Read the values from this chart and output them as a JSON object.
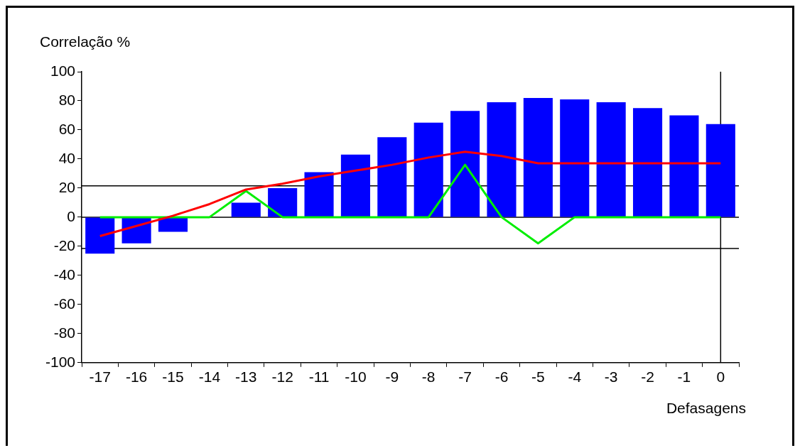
{
  "chart_data": {
    "type": "bar",
    "xlabel": "Defasagens",
    "ylabel": "Correlação %",
    "categories": [
      "-17",
      "-16",
      "-15",
      "-14",
      "-13",
      "-12",
      "-11",
      "-10",
      "-9",
      "-8",
      "-7",
      "-6",
      "-5",
      "-4",
      "-3",
      "-2",
      "-1",
      "0"
    ],
    "series": [
      {
        "color": "#0000ff",
        "values": [
          -25,
          -18,
          -10,
          0,
          10,
          20,
          31,
          43,
          55,
          65,
          73,
          79,
          82,
          81,
          79,
          75,
          70,
          64
        ]
      },
      {
        "type": "line",
        "color": "#ff0000",
        "values": [
          -13,
          -6,
          1,
          9,
          19,
          23,
          28,
          32,
          36,
          41,
          45,
          42,
          37,
          37,
          37,
          37,
          37,
          37
        ]
      },
      {
        "type": "line",
        "color": "#00ee00",
        "values": [
          0,
          0,
          0,
          0,
          18,
          0,
          0,
          0,
          0,
          0,
          36,
          0,
          -18,
          0,
          0,
          0,
          0,
          0
        ]
      }
    ],
    "ylim": [
      -100,
      100
    ],
    "yticks": [
      -100,
      -80,
      -60,
      -40,
      -20,
      0,
      20,
      40,
      60,
      80,
      100
    ],
    "ref_lines": [
      {
        "axis": "y",
        "value": 21.5,
        "color": "#000000"
      },
      {
        "axis": "y",
        "value": -21.5,
        "color": "#000000"
      },
      {
        "axis": "y",
        "value": 0,
        "color": "#000000"
      },
      {
        "axis": "x",
        "value": "0",
        "color": "#000000"
      }
    ],
    "grid": false,
    "legend": false,
    "marker": "none",
    "line_style": "solid"
  }
}
